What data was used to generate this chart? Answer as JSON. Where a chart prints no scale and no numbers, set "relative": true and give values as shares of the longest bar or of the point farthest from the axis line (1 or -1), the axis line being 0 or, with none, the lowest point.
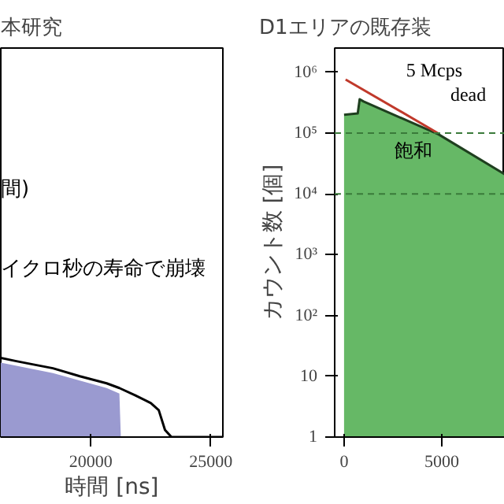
{
  "chart_data": [
    {
      "type": "area",
      "title": "本研究",
      "xlabel": "時間 [ns]",
      "relative": true,
      "xlim": [
        16250,
        25500
      ],
      "xticks": [
        20000,
        25000
      ],
      "series": [
        {
          "color": "#9a9ad0",
          "x": [
            16250,
            18420,
            20660,
            21190,
            21250
          ],
          "values": [
            0.94,
            0.81,
            0.62,
            0.55,
            0
          ]
        },
        {
          "type": "line",
          "color": "#000000",
          "x": [
            16250,
            16900,
            17570,
            18420,
            19540,
            20660,
            21190,
            21840,
            22500,
            22830,
            23090,
            23360,
            25500
          ],
          "values": [
            1.0,
            0.96,
            0.92,
            0.87,
            0.77,
            0.68,
            0.62,
            0.53,
            0.43,
            0.34,
            0.09,
            0,
            0
          ]
        }
      ],
      "annotations": [
        "間)",
        "イクロ秒の寿命で崩壊"
      ]
    },
    {
      "type": "area",
      "title": "D1エリアの既存装",
      "ylabel": "カウント数 [個]",
      "log": "y",
      "xlim": [
        -480,
        8230
      ],
      "xticks": [
        0,
        5000
      ],
      "ylim": [
        1,
        2500000
      ],
      "yticks": [
        1,
        10,
        {
          "value": 100,
          "label": "10²"
        },
        {
          "value": 1000,
          "label": "10³"
        },
        {
          "value": 10000,
          "label": "10⁴"
        },
        {
          "value": 100000,
          "label": "10⁵"
        },
        {
          "value": 1000000,
          "label": "10⁶"
        }
      ],
      "series": [
        {
          "color": "#66b866",
          "x": [
            0,
            700,
            800,
            1000,
            4840,
            8230
          ],
          "values": [
            200000,
            210000,
            360000,
            330000,
            95000,
            21000
          ]
        },
        {
          "type": "line",
          "color": "#c0392b",
          "x": [
            80,
            4800
          ],
          "values": [
            760000,
            100000
          ]
        }
      ],
      "ref_lines": [
        {
          "axis": "y",
          "value": 100000,
          "color": "#3a7a3a",
          "line_style": "dashed"
        },
        {
          "axis": "y",
          "value": 10000,
          "color": "#3a7a3a",
          "line_style": "dashed"
        }
      ],
      "annotations": [
        "5 Mcps",
        "dead",
        "飽和"
      ]
    }
  ]
}
